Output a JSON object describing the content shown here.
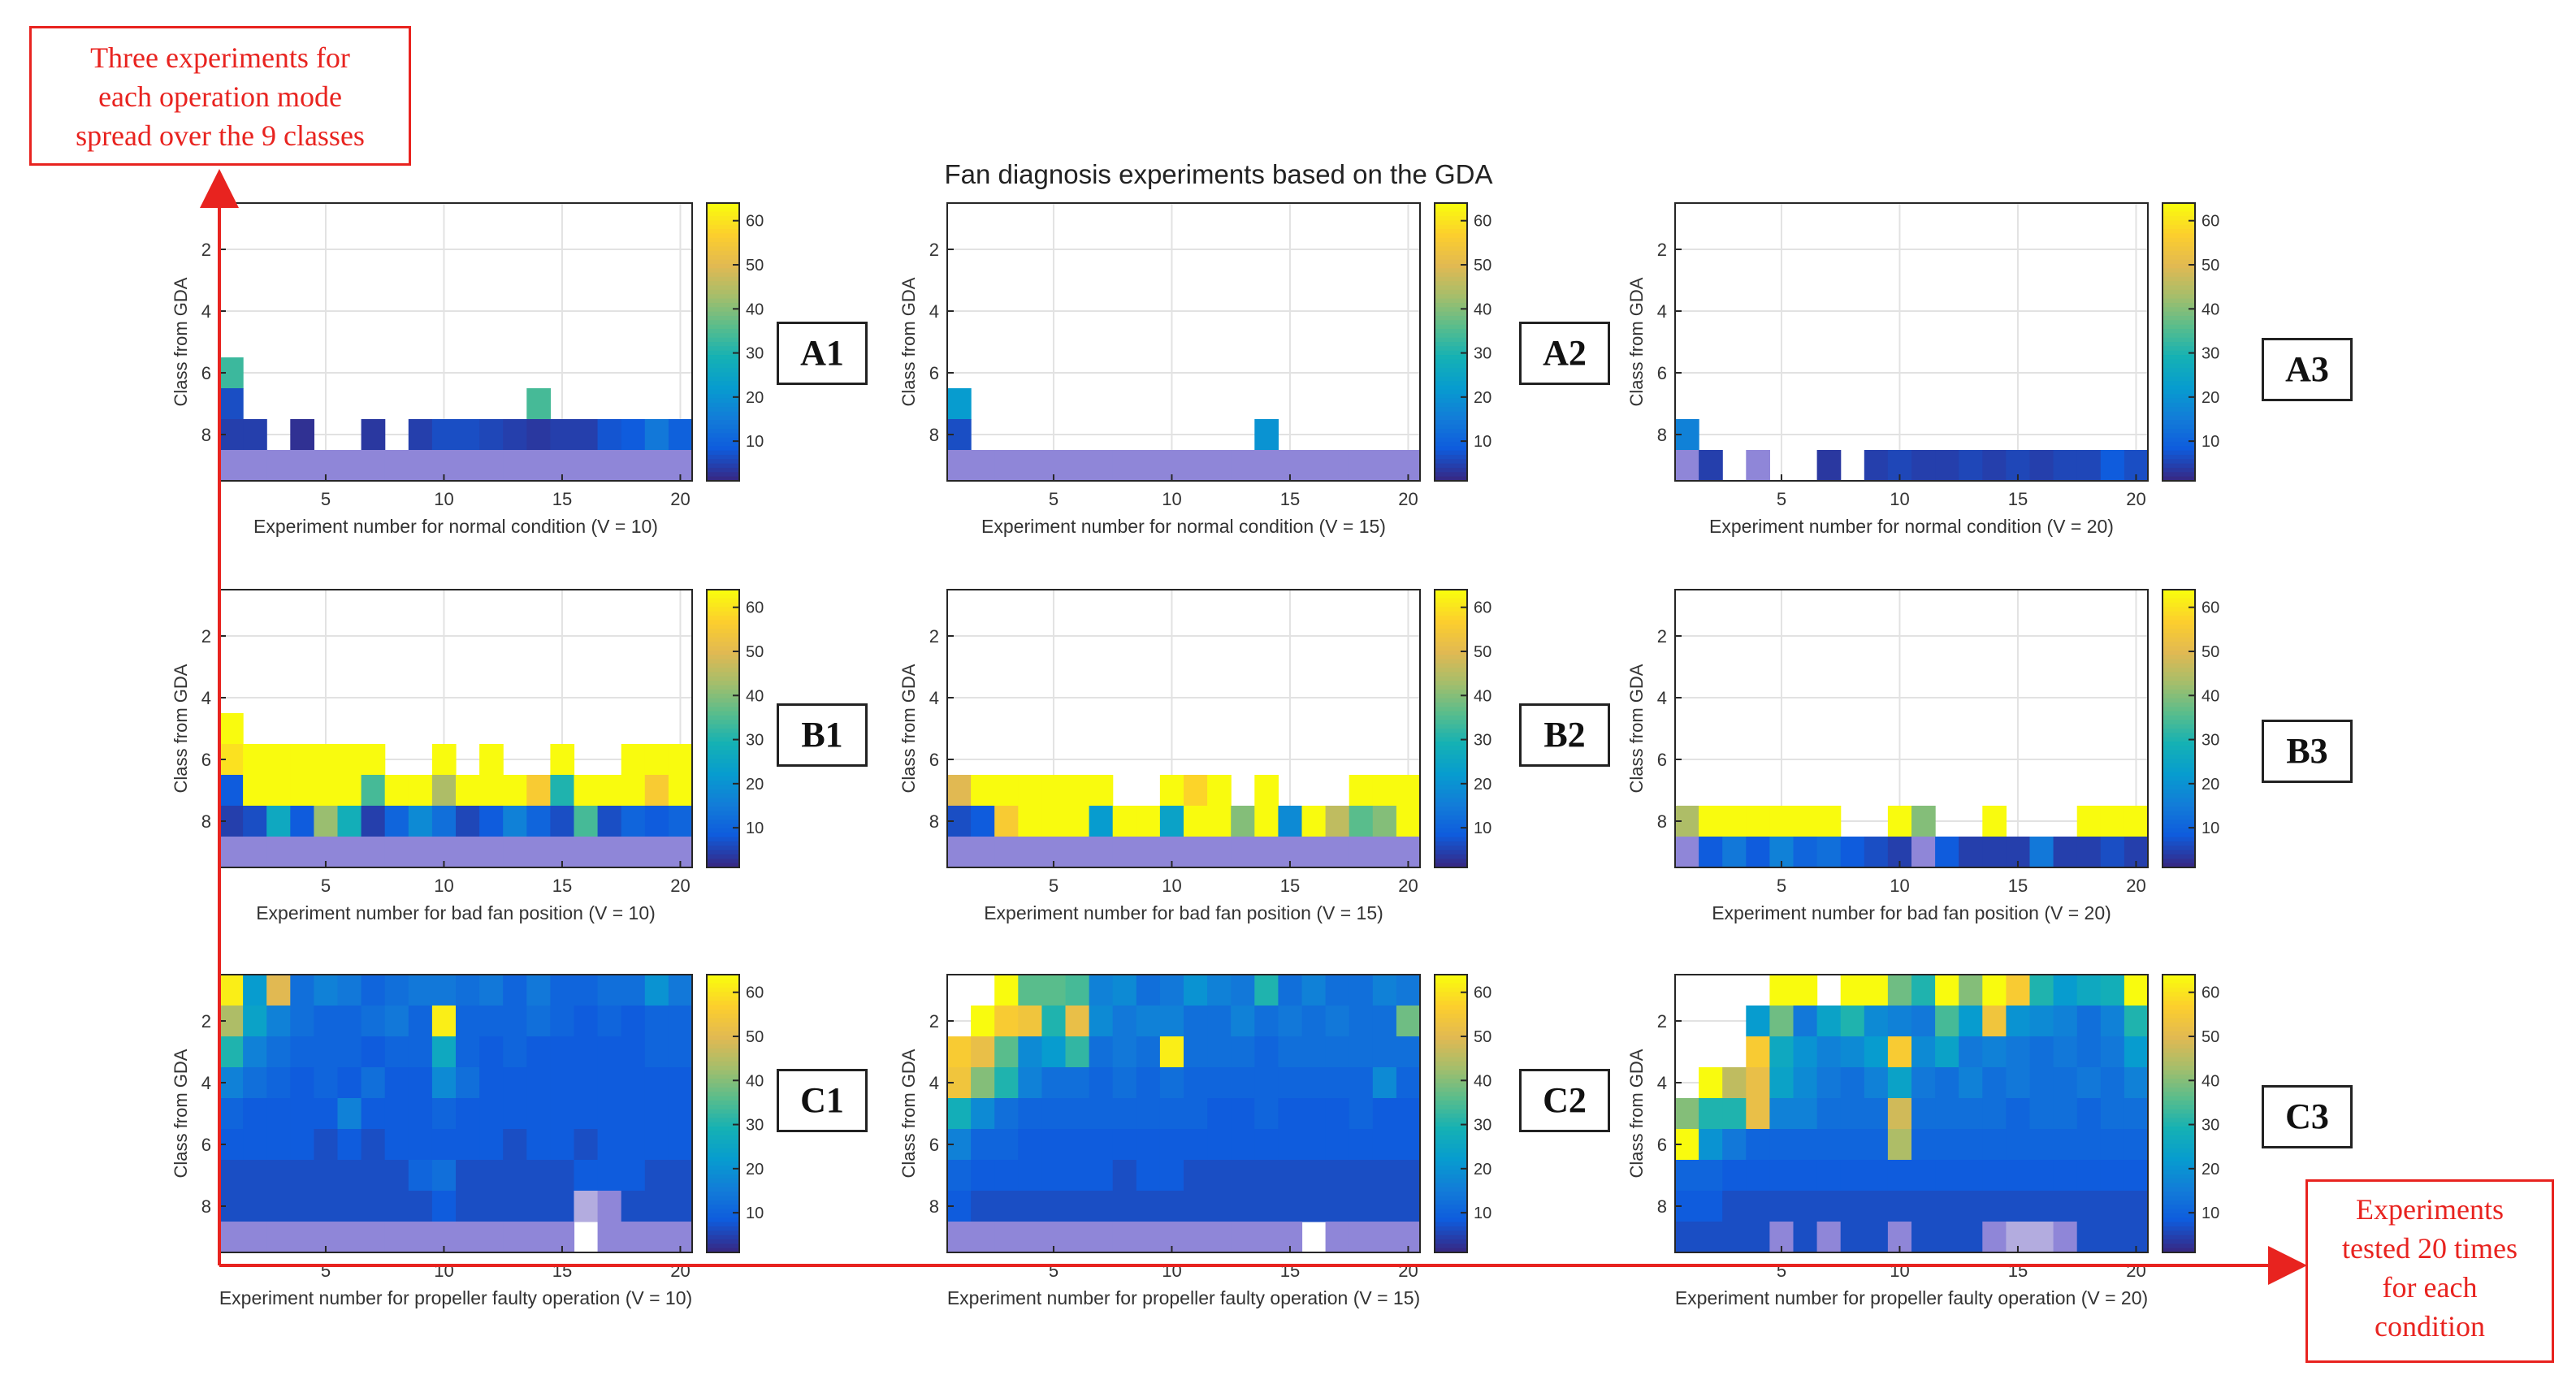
{
  "figure": {
    "title": "Fan diagnosis experiments based on the GDA",
    "colors": {
      "annotation": "#e8231f",
      "overflow_row": "#8f86d8"
    }
  },
  "annotations": {
    "left_box": [
      "Three experiments for",
      "each operation mode",
      "spread over the 9 classes"
    ],
    "right_box": [
      "Experiments",
      "tested 20 times",
      "for each",
      "condition"
    ]
  },
  "panel_labels": [
    "A1",
    "A2",
    "A3",
    "B1",
    "B2",
    "B3",
    "C1",
    "C2",
    "C3"
  ],
  "chart_data": [
    {
      "id": "A1",
      "type": "heatmap",
      "ylabel": "Class from GDA",
      "xlabel": "Experiment number for normal condition (V = 10)",
      "x_ticks": [
        5,
        10,
        15,
        20
      ],
      "y_ticks": [
        2,
        4,
        6,
        8
      ],
      "xlim": [
        0.5,
        20.5
      ],
      "ylim": [
        0.5,
        9.5
      ],
      "colorbar_ticks": [
        10,
        20,
        30,
        40,
        50,
        60
      ],
      "clim": [
        1,
        64
      ],
      "colormap": "parula",
      "rows": {
        "6": [
          33,
          0,
          0,
          0,
          0,
          0,
          0,
          0,
          0,
          0,
          0,
          0,
          0,
          0,
          0,
          0,
          0,
          0,
          0,
          0
        ],
        "7": [
          6,
          0,
          0,
          0,
          0,
          0,
          0,
          0,
          0,
          0,
          0,
          0,
          0,
          34,
          0,
          0,
          0,
          0,
          0,
          0
        ],
        "8": [
          4,
          4,
          0,
          2,
          0,
          0,
          3,
          0,
          4,
          6,
          6,
          5,
          4,
          3,
          4,
          4,
          7,
          8,
          14,
          9
        ]
      },
      "row9": "light_purple"
    },
    {
      "id": "A2",
      "type": "heatmap",
      "ylabel": "Class from GDA",
      "xlabel": "Experiment number for normal condition (V = 15)",
      "x_ticks": [
        5,
        10,
        15,
        20
      ],
      "y_ticks": [
        2,
        4,
        6,
        8
      ],
      "xlim": [
        0.5,
        20.5
      ],
      "ylim": [
        0.5,
        9.5
      ],
      "colorbar_ticks": [
        10,
        20,
        30,
        40,
        50,
        60
      ],
      "clim": [
        1,
        64
      ],
      "colormap": "parula",
      "rows": {
        "7": [
          22,
          0,
          0,
          0,
          0,
          0,
          0,
          0,
          0,
          0,
          0,
          0,
          0,
          0,
          0,
          0,
          0,
          0,
          0,
          0
        ],
        "8": [
          6,
          0,
          0,
          0,
          0,
          0,
          0,
          0,
          0,
          0,
          0,
          0,
          0,
          20,
          0,
          0,
          0,
          0,
          0,
          0
        ]
      },
      "row9": "light_purple"
    },
    {
      "id": "A3",
      "type": "heatmap",
      "ylabel": "Class from GDA",
      "xlabel": "Experiment number for normal condition (V = 20)",
      "x_ticks": [
        5,
        10,
        15,
        20
      ],
      "y_ticks": [
        2,
        4,
        6,
        8
      ],
      "xlim": [
        0.5,
        20.5
      ],
      "ylim": [
        0.5,
        9.5
      ],
      "colorbar_ticks": [
        10,
        20,
        30,
        40,
        50,
        60
      ],
      "clim": [
        1,
        64
      ],
      "colormap": "parula",
      "rows": {
        "8": [
          16,
          0,
          0,
          0,
          0,
          0,
          0,
          0,
          0,
          0,
          0,
          0,
          0,
          0,
          0,
          0,
          0,
          0,
          0,
          0
        ],
        "9": [
          -1,
          4,
          0,
          -1,
          0,
          0,
          3,
          0,
          4,
          5,
          4,
          4,
          5,
          4,
          5,
          4,
          5,
          5,
          8,
          6
        ]
      },
      "row9": "mixed"
    },
    {
      "id": "B1",
      "type": "heatmap",
      "ylabel": "Class from GDA",
      "xlabel": "Experiment number for bad fan position (V = 10)",
      "x_ticks": [
        5,
        10,
        15,
        20
      ],
      "y_ticks": [
        2,
        4,
        6,
        8
      ],
      "xlim": [
        0.5,
        20.5
      ],
      "ylim": [
        0.5,
        9.5
      ],
      "colorbar_ticks": [
        10,
        20,
        30,
        40,
        50,
        60
      ],
      "clim": [
        1,
        64
      ],
      "colormap": "parula",
      "rows": {
        "5": [
          64,
          0,
          0,
          0,
          0,
          0,
          0,
          0,
          0,
          0,
          0,
          0,
          0,
          0,
          0,
          0,
          0,
          0,
          0,
          0
        ],
        "6": [
          60,
          64,
          64,
          64,
          64,
          64,
          64,
          0,
          0,
          64,
          0,
          64,
          0,
          0,
          64,
          0,
          0,
          64,
          64,
          64
        ],
        "7": [
          8,
          64,
          64,
          64,
          64,
          64,
          34,
          64,
          64,
          44,
          64,
          64,
          64,
          56,
          30,
          64,
          64,
          64,
          56,
          64
        ],
        "8": [
          4,
          6,
          26,
          8,
          42,
          28,
          4,
          10,
          18,
          12,
          5,
          8,
          16,
          10,
          6,
          34,
          6,
          10,
          8,
          10
        ]
      },
      "row9": "light_purple"
    },
    {
      "id": "B2",
      "type": "heatmap",
      "ylabel": "Class from GDA",
      "xlabel": "Experiment number for bad fan position (V = 15)",
      "x_ticks": [
        5,
        10,
        15,
        20
      ],
      "y_ticks": [
        2,
        4,
        6,
        8
      ],
      "xlim": [
        0.5,
        20.5
      ],
      "ylim": [
        0.5,
        9.5
      ],
      "colorbar_ticks": [
        10,
        20,
        30,
        40,
        50,
        60
      ],
      "clim": [
        1,
        64
      ],
      "colormap": "parula",
      "rows": {
        "7": [
          50,
          64,
          64,
          64,
          64,
          64,
          64,
          0,
          0,
          64,
          58,
          64,
          0,
          64,
          0,
          0,
          0,
          64,
          64,
          64
        ],
        "8": [
          6,
          8,
          56,
          64,
          64,
          64,
          22,
          64,
          64,
          24,
          64,
          64,
          40,
          64,
          18,
          64,
          46,
          36,
          40,
          64
        ]
      },
      "row9": "light_purple"
    },
    {
      "id": "B3",
      "type": "heatmap",
      "ylabel": "Class from GDA",
      "xlabel": "Experiment number for bad fan position (V = 20)",
      "x_ticks": [
        5,
        10,
        15,
        20
      ],
      "y_ticks": [
        2,
        4,
        6,
        8
      ],
      "xlim": [
        0.5,
        20.5
      ],
      "ylim": [
        0.5,
        9.5
      ],
      "colorbar_ticks": [
        10,
        20,
        30,
        40,
        50,
        60
      ],
      "clim": [
        1,
        64
      ],
      "colormap": "parula",
      "rows": {
        "8": [
          44,
          64,
          64,
          64,
          64,
          64,
          64,
          0,
          0,
          64,
          40,
          0,
          0,
          64,
          0,
          0,
          0,
          64,
          64,
          64
        ],
        "9": [
          -1,
          8,
          14,
          8,
          16,
          10,
          12,
          8,
          6,
          4,
          -1,
          8,
          4,
          4,
          4,
          14,
          4,
          4,
          6,
          4
        ]
      },
      "row9": "mixed"
    },
    {
      "id": "C1",
      "type": "heatmap",
      "ylabel": "Class from GDA",
      "xlabel": "Experiment number for propeller faulty operation (V = 10)",
      "x_ticks": [
        5,
        10,
        15,
        20
      ],
      "y_ticks": [
        2,
        4,
        6,
        8
      ],
      "xlim": [
        0.5,
        20.5
      ],
      "ylim": [
        0.5,
        9.5
      ],
      "colorbar_ticks": [
        10,
        20,
        30,
        40,
        50,
        60
      ],
      "clim": [
        1,
        64
      ],
      "colormap": "parula",
      "rows": {
        "1": [
          62,
          22,
          50,
          12,
          16,
          14,
          10,
          12,
          14,
          14,
          12,
          14,
          10,
          14,
          10,
          10,
          12,
          12,
          20,
          14
        ],
        "2": [
          44,
          24,
          16,
          12,
          10,
          10,
          12,
          14,
          10,
          62,
          10,
          10,
          10,
          12,
          10,
          8,
          10,
          8,
          10,
          10
        ],
        "3": [
          30,
          16,
          12,
          10,
          10,
          10,
          8,
          10,
          10,
          26,
          10,
          8,
          10,
          8,
          8,
          8,
          8,
          8,
          10,
          10
        ],
        "4": [
          16,
          12,
          10,
          8,
          10,
          8,
          12,
          8,
          8,
          18,
          12,
          8,
          8,
          8,
          8,
          8,
          8,
          8,
          8,
          8
        ],
        "5": [
          10,
          8,
          8,
          8,
          8,
          16,
          8,
          8,
          8,
          10,
          8,
          8,
          8,
          8,
          8,
          8,
          8,
          8,
          8,
          8
        ],
        "6": [
          8,
          8,
          8,
          8,
          6,
          8,
          6,
          8,
          8,
          8,
          8,
          8,
          6,
          8,
          8,
          6,
          8,
          8,
          8,
          8
        ],
        "7": [
          6,
          6,
          6,
          6,
          6,
          6,
          6,
          6,
          10,
          12,
          6,
          6,
          6,
          6,
          6,
          8,
          8,
          8,
          6,
          6
        ],
        "8": [
          6,
          6,
          6,
          6,
          6,
          6,
          6,
          6,
          6,
          8,
          6,
          6,
          6,
          6,
          6,
          -2,
          -1,
          6,
          6,
          6
        ]
      },
      "row9": "light_purple_gap_16"
    },
    {
      "id": "C2",
      "type": "heatmap",
      "ylabel": "Class from GDA",
      "xlabel": "Experiment number for propeller faulty operation (V = 15)",
      "x_ticks": [
        5,
        10,
        15,
        20
      ],
      "y_ticks": [
        2,
        4,
        6,
        8
      ],
      "xlim": [
        0.5,
        20.5
      ],
      "ylim": [
        0.5,
        9.5
      ],
      "colorbar_ticks": [
        10,
        20,
        30,
        40,
        50,
        60
      ],
      "clim": [
        1,
        64
      ],
      "colormap": "parula",
      "rows": {
        "1": [
          0,
          0,
          64,
          36,
          36,
          34,
          16,
          18,
          12,
          14,
          20,
          16,
          14,
          30,
          12,
          16,
          12,
          12,
          16,
          14
        ],
        "2": [
          0,
          64,
          56,
          54,
          30,
          52,
          18,
          14,
          16,
          16,
          12,
          12,
          16,
          12,
          14,
          12,
          14,
          12,
          12,
          38
        ],
        "3": [
          56,
          52,
          36,
          18,
          22,
          32,
          12,
          14,
          12,
          62,
          12,
          12,
          12,
          10,
          12,
          12,
          12,
          12,
          12,
          12
        ],
        "4": [
          54,
          40,
          30,
          16,
          12,
          12,
          10,
          12,
          10,
          12,
          10,
          10,
          10,
          10,
          10,
          10,
          10,
          10,
          18,
          10
        ],
        "5": [
          28,
          18,
          12,
          10,
          10,
          10,
          10,
          10,
          10,
          10,
          10,
          8,
          8,
          10,
          8,
          8,
          8,
          10,
          8,
          8
        ],
        "6": [
          16,
          10,
          10,
          8,
          8,
          8,
          8,
          8,
          8,
          8,
          8,
          8,
          8,
          8,
          8,
          8,
          8,
          8,
          8,
          8
        ],
        "7": [
          10,
          8,
          8,
          8,
          8,
          8,
          8,
          6,
          8,
          8,
          6,
          6,
          6,
          6,
          6,
          6,
          6,
          6,
          6,
          6
        ],
        "8": [
          8,
          6,
          6,
          6,
          6,
          6,
          6,
          6,
          6,
          6,
          6,
          6,
          6,
          6,
          6,
          6,
          6,
          6,
          6,
          6
        ]
      },
      "row9": "light_purple_gap_16"
    },
    {
      "id": "C3",
      "type": "heatmap",
      "ylabel": "Class from GDA",
      "xlabel": "Experiment number for propeller faulty operation (V = 20)",
      "x_ticks": [
        5,
        10,
        15,
        20
      ],
      "y_ticks": [
        2,
        4,
        6,
        8
      ],
      "xlim": [
        0.5,
        20.5
      ],
      "ylim": [
        0.5,
        9.5
      ],
      "colorbar_ticks": [
        10,
        20,
        30,
        40,
        50,
        60
      ],
      "clim": [
        1,
        64
      ],
      "colormap": "parula",
      "rows": {
        "1": [
          0,
          0,
          0,
          0,
          64,
          64,
          0,
          64,
          64,
          38,
          30,
          64,
          40,
          64,
          56,
          30,
          22,
          26,
          28,
          64
        ],
        "2": [
          0,
          0,
          0,
          22,
          38,
          14,
          24,
          30,
          18,
          16,
          14,
          34,
          22,
          54,
          20,
          18,
          16,
          12,
          16,
          30
        ],
        "3": [
          0,
          0,
          0,
          56,
          26,
          20,
          16,
          18,
          22,
          56,
          18,
          24,
          14,
          16,
          14,
          12,
          14,
          12,
          14,
          22
        ],
        "4": [
          0,
          64,
          46,
          52,
          24,
          18,
          14,
          12,
          16,
          24,
          14,
          12,
          16,
          12,
          14,
          12,
          12,
          14,
          12,
          16
        ],
        "5": [
          40,
          30,
          30,
          52,
          16,
          16,
          12,
          12,
          12,
          48,
          12,
          12,
          12,
          12,
          10,
          12,
          12,
          10,
          12,
          12
        ],
        "6": [
          64,
          20,
          14,
          10,
          10,
          10,
          10,
          10,
          10,
          44,
          10,
          10,
          10,
          10,
          10,
          10,
          10,
          10,
          10,
          10
        ],
        "7": [
          10,
          10,
          8,
          8,
          8,
          8,
          8,
          8,
          8,
          8,
          8,
          8,
          8,
          8,
          8,
          8,
          8,
          8,
          8,
          8
        ],
        "8": [
          8,
          8,
          6,
          6,
          6,
          6,
          6,
          6,
          6,
          6,
          6,
          6,
          6,
          6,
          6,
          6,
          6,
          6,
          6,
          6
        ],
        "9": [
          6,
          6,
          6,
          6,
          -1,
          6,
          -1,
          6,
          6,
          -1,
          6,
          6,
          6,
          -1,
          -2,
          -2,
          -1,
          6,
          6,
          6
        ]
      },
      "row9": "custom"
    }
  ]
}
